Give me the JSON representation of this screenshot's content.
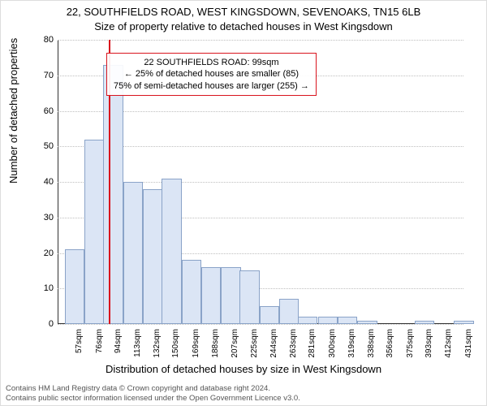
{
  "titles": {
    "address": "22, SOUTHFIELDS ROAD, WEST KINGSDOWN, SEVENOAKS, TN15 6LB",
    "sub": "Size of property relative to detached houses in West Kingsdown"
  },
  "chart": {
    "type": "histogram",
    "ylabel": "Number of detached properties",
    "xlabel": "Distribution of detached houses by size in West Kingsdown",
    "ylim": [
      0,
      80
    ],
    "ytick_step": 10,
    "x_start": 50,
    "x_end": 440,
    "bin_width_sqm": 19,
    "bar_fill": "#dbe5f5",
    "bar_stroke": "#8aa3c8",
    "grid_color": "#bfbfbf",
    "background": "#ffffff",
    "marker_color": "#d9141e",
    "marker_at_sqm": 99,
    "bins": [
      {
        "start": 57,
        "count": 21
      },
      {
        "start": 76,
        "count": 52
      },
      {
        "start": 94,
        "count": 73
      },
      {
        "start": 113,
        "count": 40
      },
      {
        "start": 132,
        "count": 38
      },
      {
        "start": 150,
        "count": 41
      },
      {
        "start": 169,
        "count": 18
      },
      {
        "start": 188,
        "count": 16
      },
      {
        "start": 207,
        "count": 16
      },
      {
        "start": 225,
        "count": 15
      },
      {
        "start": 244,
        "count": 5
      },
      {
        "start": 263,
        "count": 7
      },
      {
        "start": 281,
        "count": 2
      },
      {
        "start": 300,
        "count": 2
      },
      {
        "start": 319,
        "count": 2
      },
      {
        "start": 338,
        "count": 1
      },
      {
        "start": 356,
        "count": 0
      },
      {
        "start": 375,
        "count": 0
      },
      {
        "start": 393,
        "count": 1
      },
      {
        "start": 412,
        "count": 0
      },
      {
        "start": 431,
        "count": 1
      }
    ],
    "xtick_labels": [
      "57sqm",
      "76sqm",
      "94sqm",
      "113sqm",
      "132sqm",
      "150sqm",
      "169sqm",
      "188sqm",
      "207sqm",
      "225sqm",
      "244sqm",
      "263sqm",
      "281sqm",
      "300sqm",
      "319sqm",
      "338sqm",
      "356sqm",
      "375sqm",
      "393sqm",
      "412sqm",
      "431sqm"
    ]
  },
  "info_box": {
    "line1": "22 SOUTHFIELDS ROAD: 99sqm",
    "line2": "← 25% of detached houses are smaller (85)",
    "line3": "75% of semi-detached houses are larger (255) →",
    "border_color": "#d9141e"
  },
  "attribution": {
    "line1": "Contains HM Land Registry data © Crown copyright and database right 2024.",
    "line2": "Contains public sector information licensed under the Open Government Licence v3.0."
  }
}
